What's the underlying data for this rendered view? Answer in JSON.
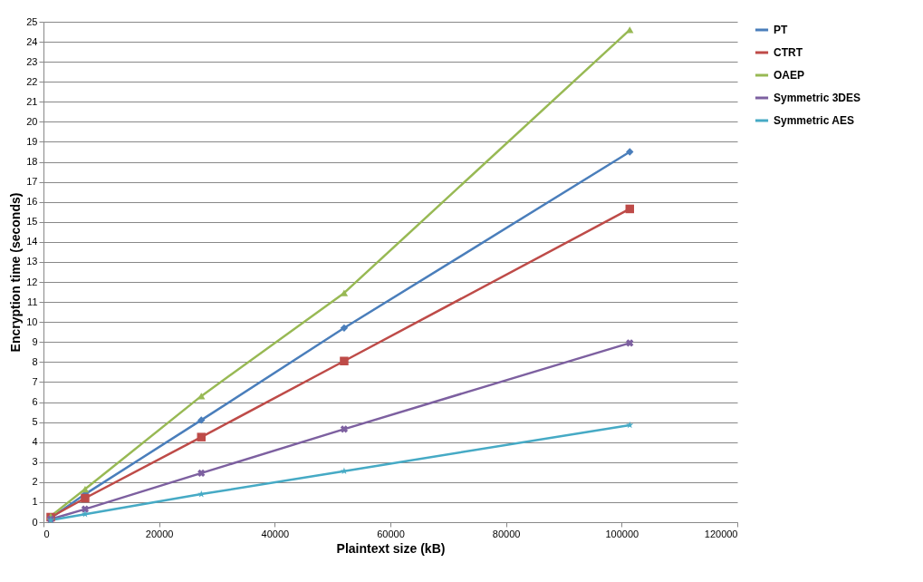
{
  "chart_data": {
    "type": "line",
    "xlabel": "Plaintext size (kB)",
    "ylabel": "Encryption time (seconds)",
    "x": [
      1250,
      7200,
      27300,
      52000,
      101400
    ],
    "xlim": [
      0,
      120000
    ],
    "xticks": [
      0,
      20000,
      40000,
      60000,
      80000,
      100000,
      120000
    ],
    "ylim": [
      0,
      25
    ],
    "yticks": [
      0,
      1,
      2,
      3,
      4,
      5,
      6,
      7,
      8,
      9,
      10,
      11,
      12,
      13,
      14,
      15,
      16,
      17,
      18,
      19,
      20,
      21,
      22,
      23,
      24,
      25
    ],
    "grid": "y",
    "legend": "right",
    "series": [
      {
        "name": "PT",
        "color": "#4a7ebb",
        "marker": "diamond",
        "values": [
          0.2,
          1.4,
          5.1,
          9.7,
          18.5
        ]
      },
      {
        "name": "CTRT",
        "color": "#be4b48",
        "marker": "square",
        "values": [
          0.25,
          1.2,
          4.25,
          8.05,
          15.65
        ]
      },
      {
        "name": "OAEP",
        "color": "#98b954",
        "marker": "triangle",
        "values": [
          0.3,
          1.65,
          6.3,
          11.45,
          24.6
        ]
      },
      {
        "name": "Symmetric 3DES",
        "color": "#7d60a0",
        "marker": "cross",
        "values": [
          0.15,
          0.65,
          2.45,
          4.65,
          8.95
        ]
      },
      {
        "name": "Symmetric AES",
        "color": "#46aac5",
        "marker": "star",
        "values": [
          0.1,
          0.4,
          1.4,
          2.55,
          4.85
        ]
      }
    ]
  }
}
